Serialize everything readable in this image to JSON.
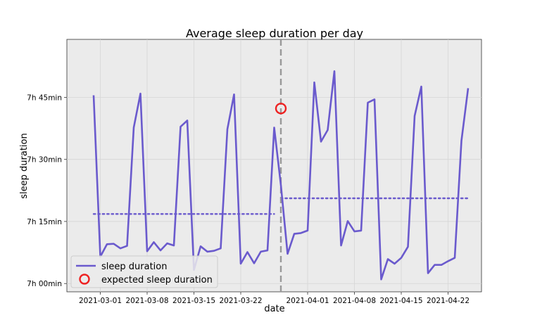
{
  "chart_data": {
    "type": "line",
    "title": "Average sleep duration per day",
    "xlabel": "date",
    "ylabel": "sleep duration",
    "grid": true,
    "legend_location": "bottom-left",
    "x_range": [
      "2021-02-24",
      "2021-04-27"
    ],
    "y_range_minutes": [
      418,
      479
    ],
    "x_ticks": [
      {
        "date": "2021-03-01",
        "label": "2021-03-01"
      },
      {
        "date": "2021-03-08",
        "label": "2021-03-08"
      },
      {
        "date": "2021-03-15",
        "label": "2021-03-15"
      },
      {
        "date": "2021-03-22",
        "label": "2021-03-22"
      },
      {
        "date": "2021-04-01",
        "label": "2021-04-01"
      },
      {
        "date": "2021-04-08",
        "label": "2021-04-08"
      },
      {
        "date": "2021-04-15",
        "label": "2021-04-15"
      },
      {
        "date": "2021-04-22",
        "label": "2021-04-22"
      }
    ],
    "y_ticks": [
      {
        "minutes": 420,
        "label": "7h 00min"
      },
      {
        "minutes": 435,
        "label": "7h 15min"
      },
      {
        "minutes": 450,
        "label": "7h 30min"
      },
      {
        "minutes": 465,
        "label": "7h 45min"
      }
    ],
    "series": [
      {
        "name": "sleep duration",
        "color": "#6a5acd",
        "start_date": "2021-02-28",
        "values_minutes": [
          465.5,
          426.5,
          429.5,
          429.6,
          428.5,
          429.1,
          457.7,
          465.9,
          427.8,
          430.0,
          428.0,
          429.7,
          429.2,
          457.9,
          459.4,
          423.3,
          429.0,
          427.7,
          427.9,
          428.5,
          457.3,
          465.7,
          424.8,
          427.6,
          424.9,
          427.7,
          428.0,
          457.7,
          443.8,
          427.2,
          432.0,
          432.2,
          432.8,
          468.6,
          454.3,
          457.1,
          471.3,
          429.2,
          435.1,
          432.6,
          432.8,
          463.7,
          464.5,
          421.0,
          425.9,
          424.8,
          426.2,
          428.9,
          460.5,
          467.6,
          422.5,
          424.5,
          424.5,
          425.4,
          426.2,
          454.5,
          467.2
        ]
      }
    ],
    "reference_lines": [
      {
        "name": "mean before",
        "from": "2021-02-28",
        "to": "2021-03-27",
        "value_minutes": 436.8,
        "style": "dotted",
        "color": "#6a5acd"
      },
      {
        "name": "mean after",
        "from": "2021-03-28",
        "to": "2021-04-25",
        "value_minutes": 440.6,
        "style": "dotted",
        "color": "#6a5acd"
      }
    ],
    "vertical_marker": {
      "date": "2021-03-28",
      "style": "dashed",
      "color": "#999999"
    },
    "expected_point": {
      "name": "expected sleep duration",
      "date": "2021-03-28",
      "value_minutes": 462.3,
      "color": "#ee2222"
    }
  },
  "legend": {
    "line_label": "sleep duration",
    "marker_label": "expected sleep duration"
  }
}
